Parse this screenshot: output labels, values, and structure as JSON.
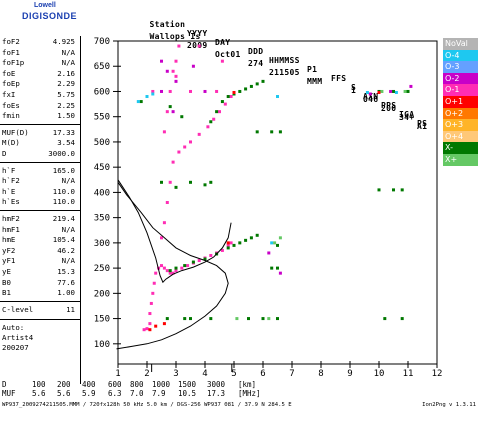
{
  "logo": {
    "line1": "Lowell",
    "line2": "DIGISONDE"
  },
  "header": {
    "labels": [
      "Station",
      "YYYY",
      "DAY",
      "DDD",
      "HHMMSS",
      "P1",
      "FFS",
      "S",
      "AXN",
      "PPS",
      "IGA",
      "PS"
    ],
    "values": [
      "Wallops Is",
      "2009",
      "Oct01",
      "274",
      "211505",
      "MMM",
      "1",
      "046",
      "200",
      "34+",
      "A1"
    ]
  },
  "params": [
    {
      "name": "foF2",
      "value": "4.925"
    },
    {
      "name": "foF1",
      "value": "N/A"
    },
    {
      "name": "foF1p",
      "value": "N/A"
    },
    {
      "name": "foE",
      "value": "2.16"
    },
    {
      "name": "foEp",
      "value": "2.29"
    },
    {
      "name": "fxI",
      "value": "5.75"
    },
    {
      "name": "foEs",
      "value": "2.25"
    },
    {
      "name": "fmin",
      "value": "1.50"
    },
    {
      "name": "MUF(D)",
      "value": "17.33"
    },
    {
      "name": "M(D)",
      "value": "3.54"
    },
    {
      "name": "D",
      "value": "3000.0"
    },
    {
      "name": "h`F",
      "value": "165.0"
    },
    {
      "name": "h`F2",
      "value": "N/A"
    },
    {
      "name": "h`E",
      "value": "110.0"
    },
    {
      "name": "h`Es",
      "value": "110.0"
    },
    {
      "name": "hmF2",
      "value": "219.4"
    },
    {
      "name": "hmF1",
      "value": "N/A"
    },
    {
      "name": "hmE",
      "value": "105.4"
    },
    {
      "name": "yF2",
      "value": "46.2"
    },
    {
      "name": "yF1",
      "value": "N/A"
    },
    {
      "name": "yE",
      "value": "15.3"
    },
    {
      "name": "B0",
      "value": "77.6"
    },
    {
      "name": "B1",
      "value": "1.00"
    },
    {
      "name": "C-level",
      "value": "11"
    }
  ],
  "auto": {
    "l1": "Auto:",
    "l2": "Artist4",
    "l3": "200207"
  },
  "muf_table": {
    "label_d": "D",
    "d_values": [
      "100",
      "200",
      "400",
      "600",
      "800",
      "1000",
      "1500",
      "3000",
      "[km]"
    ],
    "label_muf": "MUF",
    "muf_values": [
      "5.6",
      "5.6",
      "5.9",
      "6.3",
      "7.0",
      "7.9",
      "10.5",
      "17.3",
      "[MHz]"
    ]
  },
  "footer": {
    "left": "WP937_2009274211505.MMM / 720fx128h 50 kHz 5.0 km / DGS-256 WP937 081 / 37.9 N 284.5 E",
    "right": "Ion2Png v 1.3.11"
  },
  "legend": [
    {
      "label": "NoVal",
      "color": "#b4b4b4"
    },
    {
      "label": "O-4",
      "color": "#1ec8f0"
    },
    {
      "label": "O-3",
      "color": "#64a0ff"
    },
    {
      "label": "O-2",
      "color": "#c800c8"
    },
    {
      "label": "O-1",
      "color": "#ff2db4"
    },
    {
      "label": "O+1",
      "color": "#ff0000"
    },
    {
      "label": "O+2",
      "color": "#ff7800"
    },
    {
      "label": "O+3",
      "color": "#ffb428"
    },
    {
      "label": "O+4",
      "color": "#ffc878"
    },
    {
      "label": "X-",
      "color": "#007800"
    },
    {
      "label": "X+",
      "color": "#64c864"
    }
  ],
  "chart_data": {
    "type": "scatter",
    "title": "",
    "xlabel": "",
    "ylabel": "",
    "xlim": [
      1,
      12
    ],
    "ylim": [
      60,
      700
    ],
    "x_ticks": [
      1,
      2,
      3,
      4,
      5,
      6,
      7,
      8,
      9,
      10,
      11,
      12
    ],
    "y_ticks": [
      100,
      150,
      200,
      250,
      300,
      350,
      400,
      450,
      500,
      550,
      600,
      650,
      700
    ],
    "y_tick_labels": [
      "100",
      "150",
      "200",
      "250",
      "300",
      "350",
      "400",
      "450",
      "500",
      "550",
      "600",
      "650",
      "700"
    ],
    "x_tick_labels": [
      "1",
      "2",
      "3",
      "4",
      "5",
      "6",
      "7",
      "8",
      "9",
      "10",
      "11",
      "12"
    ],
    "vertical_markers": [
      2.16,
      4.925
    ],
    "series": [
      {
        "name": "O-1",
        "color": "#ff2db4",
        "points": [
          [
            1.9,
            128
          ],
          [
            2.0,
            130
          ],
          [
            2.1,
            140
          ],
          [
            2.1,
            160
          ],
          [
            2.15,
            180
          ],
          [
            2.2,
            200
          ],
          [
            2.25,
            220
          ],
          [
            2.3,
            240
          ],
          [
            2.4,
            250
          ],
          [
            2.5,
            255
          ],
          [
            2.6,
            250
          ],
          [
            2.7,
            245
          ],
          [
            2.8,
            240
          ],
          [
            2.9,
            240
          ],
          [
            3.0,
            245
          ],
          [
            3.2,
            250
          ],
          [
            3.4,
            255
          ],
          [
            3.6,
            260
          ],
          [
            3.8,
            265
          ],
          [
            4.0,
            270
          ],
          [
            4.2,
            275
          ],
          [
            4.4,
            280
          ],
          [
            4.6,
            285
          ],
          [
            4.8,
            295
          ],
          [
            4.9,
            300
          ],
          [
            2.5,
            310
          ],
          [
            2.6,
            340
          ],
          [
            2.7,
            380
          ],
          [
            2.8,
            420
          ],
          [
            2.9,
            460
          ],
          [
            3.1,
            480
          ],
          [
            3.3,
            490
          ],
          [
            3.5,
            500
          ],
          [
            3.8,
            515
          ],
          [
            4.1,
            530
          ],
          [
            4.3,
            545
          ],
          [
            4.5,
            560
          ],
          [
            4.7,
            575
          ],
          [
            4.9,
            590
          ],
          [
            2.6,
            520
          ],
          [
            2.7,
            560
          ],
          [
            2.8,
            600
          ],
          [
            2.9,
            640
          ],
          [
            3.0,
            660
          ],
          [
            3.1,
            690
          ],
          [
            3.0,
            630
          ],
          [
            2.2,
            600
          ],
          [
            3.5,
            600
          ],
          [
            3.8,
            690
          ],
          [
            4.4,
            600
          ],
          [
            4.6,
            660
          ]
        ]
      },
      {
        "name": "X-",
        "color": "#007800",
        "points": [
          [
            2.8,
            245
          ],
          [
            3.0,
            250
          ],
          [
            3.3,
            255
          ],
          [
            3.6,
            262
          ],
          [
            4.0,
            268
          ],
          [
            4.4,
            278
          ],
          [
            4.8,
            290
          ],
          [
            5.0,
            295
          ],
          [
            5.2,
            300
          ],
          [
            5.4,
            305
          ],
          [
            5.6,
            310
          ],
          [
            5.8,
            315
          ],
          [
            4.8,
            590
          ],
          [
            5.0,
            595
          ],
          [
            5.2,
            600
          ],
          [
            5.4,
            605
          ],
          [
            5.6,
            610
          ],
          [
            5.8,
            615
          ],
          [
            6.0,
            620
          ],
          [
            4.4,
            560
          ],
          [
            4.6,
            580
          ],
          [
            4.2,
            540
          ],
          [
            5.5,
            150
          ],
          [
            6.0,
            150
          ],
          [
            6.5,
            150
          ],
          [
            3.3,
            150
          ],
          [
            3.5,
            150
          ],
          [
            2.7,
            150
          ],
          [
            4.2,
            150
          ],
          [
            5.8,
            520
          ],
          [
            6.3,
            520
          ],
          [
            6.6,
            520
          ],
          [
            10.0,
            600
          ],
          [
            10.5,
            600
          ],
          [
            11.0,
            600
          ],
          [
            10.0,
            405
          ],
          [
            10.5,
            405
          ],
          [
            10.8,
            405
          ],
          [
            10.2,
            150
          ],
          [
            10.8,
            150
          ],
          [
            2.5,
            420
          ],
          [
            3.0,
            410
          ],
          [
            3.5,
            420
          ],
          [
            4.0,
            415
          ],
          [
            6.5,
            295
          ],
          [
            6.5,
            250
          ],
          [
            3.2,
            550
          ],
          [
            2.8,
            570
          ],
          [
            1.8,
            580
          ],
          [
            4.2,
            420
          ],
          [
            6.3,
            250
          ]
        ]
      },
      {
        "name": "O-2",
        "color": "#c800c8",
        "points": [
          [
            2.5,
            600
          ],
          [
            3.0,
            620
          ],
          [
            3.6,
            650
          ],
          [
            4.0,
            600
          ],
          [
            6.2,
            280
          ],
          [
            6.6,
            240
          ],
          [
            9.7,
            595
          ],
          [
            10.4,
            600
          ],
          [
            11.1,
            610
          ],
          [
            2.7,
            640
          ],
          [
            2.5,
            660
          ],
          [
            2.9,
            560
          ]
        ]
      },
      {
        "name": "O-4",
        "color": "#1ec8f0",
        "points": [
          [
            1.7,
            580
          ],
          [
            2.0,
            590
          ],
          [
            2.2,
            595
          ],
          [
            6.5,
            590
          ],
          [
            9.6,
            598
          ],
          [
            10.6,
            598
          ],
          [
            6.3,
            300
          ]
        ]
      },
      {
        "name": "O+1",
        "color": "#ff0000",
        "points": [
          [
            2.1,
            128
          ],
          [
            2.3,
            135
          ],
          [
            2.6,
            140
          ],
          [
            4.8,
            300
          ],
          [
            5.0,
            598
          ],
          [
            10.0,
            598
          ]
        ]
      },
      {
        "name": "X+",
        "color": "#64c864",
        "points": [
          [
            6.4,
            300
          ],
          [
            6.6,
            310
          ],
          [
            10.1,
            600
          ],
          [
            10.9,
            600
          ],
          [
            5.1,
            150
          ],
          [
            6.2,
            150
          ]
        ]
      }
    ],
    "lines": [
      {
        "name": "profile",
        "points": [
          [
            0.95,
            90
          ],
          [
            1.5,
            95
          ],
          [
            2.0,
            100
          ],
          [
            2.5,
            108
          ],
          [
            3.0,
            120
          ],
          [
            3.5,
            135
          ],
          [
            4.0,
            155
          ],
          [
            4.4,
            175
          ],
          [
            4.7,
            200
          ],
          [
            4.8,
            220
          ],
          [
            4.7,
            240
          ],
          [
            4.4,
            255
          ],
          [
            4.0,
            265
          ],
          [
            3.5,
            275
          ],
          [
            3.0,
            290
          ],
          [
            2.6,
            310
          ],
          [
            2.2,
            330
          ],
          [
            1.8,
            360
          ],
          [
            1.3,
            395
          ],
          [
            1.0,
            420
          ]
        ]
      },
      {
        "name": "virtual",
        "points": [
          [
            1.0,
            425
          ],
          [
            1.4,
            390
          ],
          [
            1.7,
            360
          ],
          [
            2.0,
            320
          ],
          [
            2.3,
            270
          ],
          [
            2.45,
            235
          ],
          [
            2.55,
            222
          ],
          [
            2.65,
            228
          ],
          [
            2.75,
            232
          ],
          [
            2.9,
            238
          ],
          [
            3.2,
            245
          ],
          [
            3.6,
            252
          ],
          [
            4.0,
            262
          ],
          [
            4.3,
            272
          ],
          [
            4.6,
            290
          ],
          [
            4.8,
            310
          ],
          [
            4.9,
            340
          ]
        ]
      }
    ]
  }
}
